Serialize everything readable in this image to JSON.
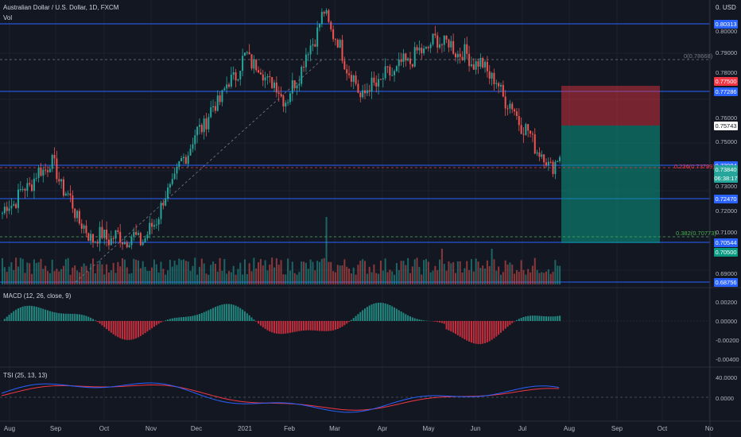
{
  "header": {
    "symbol_title": "Australian Dollar / U.S. Dollar, 1D, FXCM",
    "volume_label": "Vol",
    "currency_button": "0. USD"
  },
  "price_axis": {
    "ticks": [
      "0.80000",
      "0.79000",
      "0.78000",
      "0.76000",
      "0.75000",
      "0.73000",
      "0.72000",
      "0.71000",
      "0.69000"
    ]
  },
  "levels": [
    {
      "label": "0.80313",
      "color": "#2962ff"
    },
    {
      "label": "0.77286",
      "color": "#2962ff"
    },
    {
      "label": "0.73984",
      "color": "#2962ff"
    },
    {
      "label": "0.72470",
      "color": "#2962ff"
    },
    {
      "label": "0.70544",
      "color": "#2962ff"
    },
    {
      "label": "0.68756",
      "color": "#2962ff"
    }
  ],
  "badges": {
    "stop_price": "0.77500",
    "entry_price": "0.75743",
    "current_price": "0.73840",
    "countdown": "06:38:17",
    "target_price": "0.70500"
  },
  "fib": {
    "level_0": "0(0.78668)",
    "level_236": "0.236(0.73799)",
    "level_382": "0.382(0.70773)"
  },
  "macd": {
    "label": "MACD (12, 26, close, 9)",
    "ticks": [
      "0.00200",
      "0.00000",
      "-0.00200",
      "-0.00400"
    ]
  },
  "tsi": {
    "label": "TSI (25, 13, 13)",
    "ticks": [
      "40.0000",
      "0.0000"
    ]
  },
  "time_axis": {
    "ticks": [
      "Aug",
      "Sep",
      "Oct",
      "Nov",
      "Dec",
      "2021",
      "Feb",
      "Mar",
      "Apr",
      "May",
      "Jun",
      "Jul",
      "Aug",
      "Sep",
      "Oct",
      "No"
    ]
  },
  "colors": {
    "up": "#26a69a",
    "down": "#ef5350",
    "level_line": "#2962ff",
    "stop_zone": "#f23645",
    "target_zone": "#089981",
    "macd_line": "#2962ff",
    "tsi_line": "#2962ff",
    "tsi_signal": "#f23645"
  },
  "chart_data": {
    "type": "candlestick",
    "symbol": "Australian Dollar / U.S. Dollar, 1D, FXCM",
    "price_range": [
      0.6856,
      0.8056
    ],
    "trend": [
      {
        "date": "2020-08",
        "close": 0.715
      },
      {
        "date": "2020-09-01",
        "close": 0.737
      },
      {
        "date": "2020-09-25",
        "close": 0.705
      },
      {
        "date": "2020-11-02",
        "close": 0.704
      },
      {
        "date": "2020-12-01",
        "close": 0.745
      },
      {
        "date": "2021-01-06",
        "close": 0.782
      },
      {
        "date": "2021-02-01",
        "close": 0.763
      },
      {
        "date": "2021-02-25",
        "close": 0.8
      },
      {
        "date": "2021-03-20",
        "close": 0.765
      },
      {
        "date": "2021-05-10",
        "close": 0.789
      },
      {
        "date": "2021-06-10",
        "close": 0.776
      },
      {
        "date": "2021-07-20",
        "close": 0.735
      },
      {
        "date": "2021-07-27",
        "close": 0.7384
      }
    ],
    "position": {
      "stop": 0.775,
      "entry": 0.75743,
      "target": 0.705
    }
  }
}
